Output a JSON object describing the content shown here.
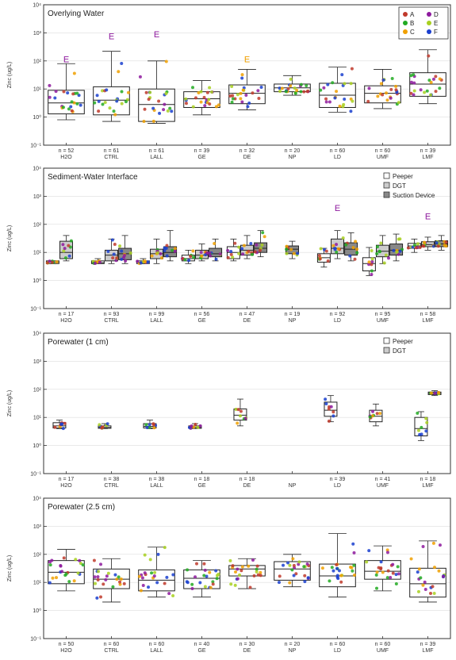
{
  "chart_data": [
    {
      "type": "box",
      "title": "Overlying Water",
      "ylabel": "Zinc (ug/L)",
      "yscale": "log",
      "ylim": [
        0.1,
        10000
      ],
      "yticks": [
        "10⁻¹",
        "10⁰",
        "10¹",
        "10²",
        "10³",
        "10⁴"
      ],
      "categories": [
        "H2O",
        "CTRL",
        "LALL",
        "GE",
        "DE",
        "NP",
        "LD",
        "UMF",
        "LMF"
      ],
      "n_labels": [
        "n = 52",
        "n = 61",
        "n = 61",
        "n = 39",
        "n = 32",
        "n = 20",
        "n = 60",
        "n = 60",
        "n = 39"
      ],
      "legend": {
        "placement": "top-right",
        "entries": [
          {
            "label": "A",
            "color": "#c0392b"
          },
          {
            "label": "B",
            "color": "#22aa22"
          },
          {
            "label": "C",
            "color": "#f0a000"
          },
          {
            "label": "D",
            "color": "#8e1a9e"
          },
          {
            "label": "E",
            "color": "#a8d020"
          },
          {
            "label": "F",
            "color": "#1a3fcf"
          }
        ]
      },
      "boxes": [
        {
          "cat": "H2O",
          "min": 0.8,
          "q1": 1.3,
          "median": 3.2,
          "q3": 9,
          "max": 80,
          "fill": "#ffffff"
        },
        {
          "cat": "CTRL",
          "min": 0.7,
          "q1": 1.2,
          "median": 4,
          "q3": 12,
          "max": 220,
          "fill": "#ffffff"
        },
        {
          "cat": "LALL",
          "min": 0.6,
          "q1": 0.7,
          "median": 2.8,
          "q3": 10,
          "max": 100,
          "fill": "#ffffff"
        },
        {
          "cat": "GE",
          "min": 1.2,
          "q1": 2.2,
          "median": 4.5,
          "q3": 8,
          "max": 20,
          "fill": "#ffffff"
        },
        {
          "cat": "DE",
          "min": 1.8,
          "q1": 3,
          "median": 7,
          "q3": 14,
          "max": 50,
          "fill": "#ffffff"
        },
        {
          "cat": "NP",
          "min": 6,
          "q1": 8,
          "median": 11,
          "q3": 15,
          "max": 30,
          "fill": "#ffffff"
        },
        {
          "cat": "LD",
          "min": 1.5,
          "q1": 2.2,
          "median": 6,
          "q3": 16,
          "max": 60,
          "fill": "#ffffff"
        },
        {
          "cat": "UMF",
          "min": 2,
          "q1": 3.2,
          "median": 7,
          "q3": 13,
          "max": 50,
          "fill": "#ffffff"
        },
        {
          "cat": "LMF",
          "min": 3,
          "q1": 5.5,
          "median": 15,
          "q3": 38,
          "max": 250,
          "fill": "#ffffff"
        }
      ],
      "annotations": [
        {
          "cat": "H2O",
          "text": "E",
          "y": 90,
          "color": "#8e1a9e"
        },
        {
          "cat": "CTRL",
          "text": "E",
          "y": 600,
          "color": "#8e1a9e"
        },
        {
          "cat": "LALL",
          "text": "E",
          "y": 700,
          "color": "#8e1a9e"
        },
        {
          "cat": "DE",
          "text": "E",
          "y": 90,
          "color": "#f0a000"
        }
      ]
    },
    {
      "type": "box",
      "title": "Sediment-Water Interface",
      "ylabel": "Zinc (ug/L)",
      "yscale": "log",
      "ylim": [
        0.1,
        10000
      ],
      "yticks": [
        "10⁻¹",
        "10⁰",
        "10¹",
        "10²",
        "10³",
        "10⁴"
      ],
      "categories": [
        "H2O",
        "CTRL",
        "LALL",
        "GE",
        "DE",
        "NP",
        "LD",
        "UMF",
        "LMF"
      ],
      "n_labels": [
        "n = 17",
        "n = 93",
        "n = 99",
        "n = 56",
        "n = 47",
        "n = 19",
        "n = 92",
        "n = 95",
        "n = 58"
      ],
      "legend": {
        "placement": "top-right",
        "entries": [
          {
            "label": "Peeper",
            "color": "#ffffff"
          },
          {
            "label": "DGT",
            "color": "#cccccc"
          },
          {
            "label": "Suction Device",
            "color": "#888888"
          }
        ]
      },
      "boxes": [
        {
          "cat": "H2O",
          "min": 4,
          "q1": 4,
          "median": 4.5,
          "q3": 5,
          "max": 5,
          "fill": "#ffffff",
          "offset": -1
        },
        {
          "cat": "H2O",
          "min": 5,
          "q1": 6,
          "median": 10,
          "q3": 25,
          "max": 40,
          "fill": "#cccccc",
          "offset": 0
        },
        {
          "cat": "CTRL",
          "min": 4,
          "q1": 4,
          "median": 4.3,
          "q3": 5,
          "max": 6,
          "fill": "#ffffff",
          "offset": -1
        },
        {
          "cat": "CTRL",
          "min": 4,
          "q1": 5,
          "median": 8,
          "q3": 12,
          "max": 30,
          "fill": "#cccccc",
          "offset": 0
        },
        {
          "cat": "CTRL",
          "min": 4,
          "q1": 5.5,
          "median": 9,
          "q3": 14,
          "max": 40,
          "fill": "#888888",
          "offset": 1
        },
        {
          "cat": "LALL",
          "min": 4,
          "q1": 4,
          "median": 4.5,
          "q3": 5,
          "max": 6,
          "fill": "#ffffff",
          "offset": -1
        },
        {
          "cat": "LALL",
          "min": 4,
          "q1": 6,
          "median": 9,
          "q3": 13,
          "max": 30,
          "fill": "#cccccc",
          "offset": 0
        },
        {
          "cat": "LALL",
          "min": 5,
          "q1": 7,
          "median": 10,
          "q3": 16,
          "max": 60,
          "fill": "#888888",
          "offset": 1
        },
        {
          "cat": "GE",
          "min": 4,
          "q1": 5,
          "median": 6,
          "q3": 8,
          "max": 12,
          "fill": "#ffffff",
          "offset": -1
        },
        {
          "cat": "GE",
          "min": 5,
          "q1": 6,
          "median": 8,
          "q3": 12,
          "max": 20,
          "fill": "#cccccc",
          "offset": 0
        },
        {
          "cat": "GE",
          "min": 5,
          "q1": 7,
          "median": 9,
          "q3": 14,
          "max": 30,
          "fill": "#888888",
          "offset": 1
        },
        {
          "cat": "DE",
          "min": 5,
          "q1": 6,
          "median": 10,
          "q3": 16,
          "max": 30,
          "fill": "#ffffff",
          "offset": -1
        },
        {
          "cat": "DE",
          "min": 6,
          "q1": 8,
          "median": 12,
          "q3": 18,
          "max": 40,
          "fill": "#cccccc",
          "offset": 0
        },
        {
          "cat": "DE",
          "min": 7,
          "q1": 10,
          "median": 14,
          "q3": 22,
          "max": 60,
          "fill": "#888888",
          "offset": 1
        },
        {
          "cat": "NP",
          "min": 6,
          "q1": 9,
          "median": 13,
          "q3": 17,
          "max": 25,
          "fill": "#888888",
          "offset": 0
        },
        {
          "cat": "LD",
          "min": 3,
          "q1": 4.5,
          "median": 6.5,
          "q3": 9,
          "max": 14,
          "fill": "#ffffff",
          "offset": -1
        },
        {
          "cat": "LD",
          "min": 6,
          "q1": 9,
          "median": 14,
          "q3": 30,
          "max": 60,
          "fill": "#cccccc",
          "offset": 0
        },
        {
          "cat": "LD",
          "min": 5,
          "q1": 8,
          "median": 13,
          "q3": 22,
          "max": 50,
          "fill": "#888888",
          "offset": 1
        },
        {
          "cat": "UMF",
          "min": 1.5,
          "q1": 2.2,
          "median": 4,
          "q3": 6.5,
          "max": 15,
          "fill": "#ffffff",
          "offset": -1
        },
        {
          "cat": "UMF",
          "min": 4,
          "q1": 7,
          "median": 11,
          "q3": 18,
          "max": 40,
          "fill": "#cccccc",
          "offset": 0
        },
        {
          "cat": "UMF",
          "min": 5,
          "q1": 8,
          "median": 12,
          "q3": 20,
          "max": 45,
          "fill": "#888888",
          "offset": 1
        },
        {
          "cat": "LMF",
          "min": 10,
          "q1": 14,
          "median": 17,
          "q3": 21,
          "max": 30,
          "fill": "#ffffff",
          "offset": -1
        },
        {
          "cat": "LMF",
          "min": 12,
          "q1": 16,
          "median": 19,
          "q3": 24,
          "max": 35,
          "fill": "#cccccc",
          "offset": 0
        },
        {
          "cat": "LMF",
          "min": 12,
          "q1": 16,
          "median": 20,
          "q3": 26,
          "max": 40,
          "fill": "#888888",
          "offset": 1
        }
      ],
      "annotations": [
        {
          "cat": "LD",
          "text": "E",
          "y": 300,
          "color": "#8e1a9e"
        },
        {
          "cat": "LMF",
          "text": "E",
          "y": 150,
          "color": "#8e1a9e"
        }
      ]
    },
    {
      "type": "box",
      "title": "Porewater (1 cm)",
      "ylabel": "Zinc (ug/L)",
      "yscale": "log",
      "ylim": [
        0.1,
        10000
      ],
      "yticks": [
        "10⁻¹",
        "10⁰",
        "10¹",
        "10²",
        "10³",
        "10⁴"
      ],
      "categories": [
        "H2O",
        "CTRL",
        "LALL",
        "GE",
        "DE",
        "NP",
        "LD",
        "UMF",
        "LMF"
      ],
      "n_labels": [
        "n = 17",
        "n = 38",
        "n = 38",
        "n = 18",
        "n = 18",
        "",
        "n = 39",
        "n = 41",
        "n = 18"
      ],
      "legend": {
        "placement": "top-right",
        "entries": [
          {
            "label": "Peeper",
            "color": "#ffffff"
          },
          {
            "label": "DGT",
            "color": "#cccccc"
          }
        ]
      },
      "boxes": [
        {
          "cat": "H2O",
          "min": 4,
          "q1": 4.2,
          "median": 5,
          "q3": 6.5,
          "max": 8,
          "fill": "#ffffff",
          "offset": -0.5
        },
        {
          "cat": "CTRL",
          "min": 4,
          "q1": 4.1,
          "median": 4.4,
          "q3": 5,
          "max": 6,
          "fill": "#ffffff",
          "offset": -0.5
        },
        {
          "cat": "LALL",
          "min": 4,
          "q1": 4.2,
          "median": 4.8,
          "q3": 6,
          "max": 8,
          "fill": "#ffffff",
          "offset": -0.5
        },
        {
          "cat": "GE",
          "min": 4,
          "q1": 4.1,
          "median": 4.4,
          "q3": 5,
          "max": 6,
          "fill": "#ffffff",
          "offset": -0.5
        },
        {
          "cat": "DE",
          "min": 5,
          "q1": 8,
          "median": 12,
          "q3": 20,
          "max": 45,
          "fill": "#ffffff",
          "offset": -0.5
        },
        {
          "cat": "LD",
          "min": 7,
          "q1": 11,
          "median": 18,
          "q3": 35,
          "max": 60,
          "fill": "#ffffff",
          "offset": -0.5
        },
        {
          "cat": "UMF",
          "min": 5,
          "q1": 7,
          "median": 11,
          "q3": 18,
          "max": 30,
          "fill": "#ffffff",
          "offset": -0.5
        },
        {
          "cat": "LMF",
          "min": 1.5,
          "q1": 2.2,
          "median": 4,
          "q3": 10,
          "max": 16,
          "fill": "#ffffff",
          "offset": -0.5
        },
        {
          "cat": "LMF",
          "min": 60,
          "q1": 65,
          "median": 72,
          "q3": 80,
          "max": 90,
          "fill": "#cccccc",
          "offset": 0.5
        }
      ],
      "annotations": []
    },
    {
      "type": "box",
      "title": "Porewater (2.5 cm)",
      "ylabel": "Zinc (ug/L)",
      "yscale": "log",
      "ylim": [
        0.1,
        10000
      ],
      "yticks": [
        "10⁻¹",
        "10⁰",
        "10¹",
        "10²",
        "10³",
        "10⁴"
      ],
      "categories": [
        "H2O",
        "CTRL",
        "LALL",
        "GE",
        "DE",
        "NP",
        "LD",
        "UMF",
        "LMF"
      ],
      "n_labels": [
        "n = 50",
        "n = 60",
        "n = 60",
        "n = 40",
        "n = 30",
        "n = 20",
        "n = 60",
        "n = 60",
        "n = 39"
      ],
      "legend": null,
      "boxes": [
        {
          "cat": "H2O",
          "min": 5,
          "q1": 9,
          "median": 23,
          "q3": 60,
          "max": 150,
          "fill": "#ffffff"
        },
        {
          "cat": "CTRL",
          "min": 2,
          "q1": 6,
          "median": 13,
          "q3": 30,
          "max": 70,
          "fill": "#ffffff"
        },
        {
          "cat": "LALL",
          "min": 3,
          "q1": 5,
          "median": 12,
          "q3": 28,
          "max": 180,
          "fill": "#ffffff"
        },
        {
          "cat": "GE",
          "min": 3,
          "q1": 6,
          "median": 14,
          "q3": 28,
          "max": 60,
          "fill": "#ffffff"
        },
        {
          "cat": "DE",
          "min": 6,
          "q1": 17,
          "median": 30,
          "q3": 40,
          "max": 70,
          "fill": "#ffffff"
        },
        {
          "cat": "NP",
          "min": 7,
          "q1": 12,
          "median": 30,
          "q3": 55,
          "max": 100,
          "fill": "#ffffff"
        },
        {
          "cat": "LD",
          "min": 3,
          "q1": 7,
          "median": 17,
          "q3": 45,
          "max": 550,
          "fill": "#ffffff"
        },
        {
          "cat": "UMF",
          "min": 5,
          "q1": 13,
          "median": 25,
          "q3": 60,
          "max": 200,
          "fill": "#ffffff"
        },
        {
          "cat": "LMF",
          "min": 2,
          "q1": 3,
          "median": 9,
          "q3": 32,
          "max": 300,
          "fill": "#ffffff"
        }
      ],
      "annotations": []
    }
  ]
}
